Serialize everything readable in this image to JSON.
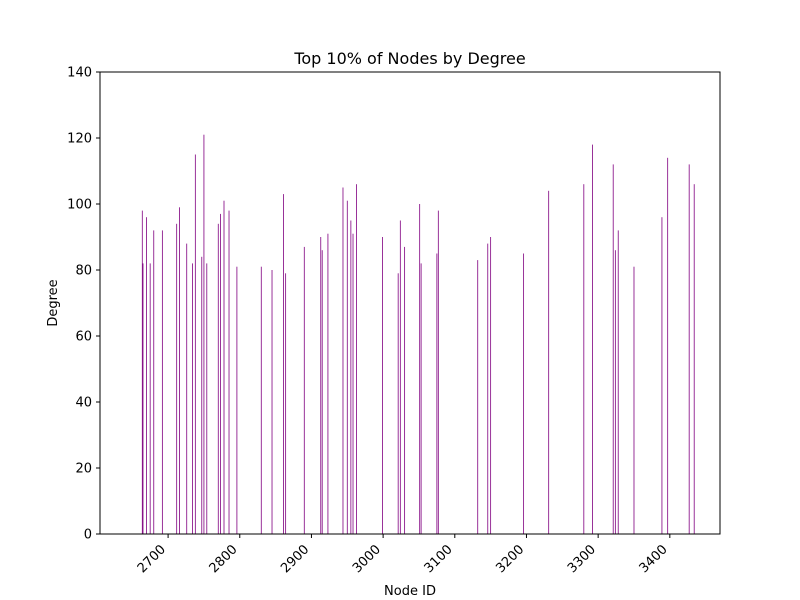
{
  "chart_data": {
    "type": "bar",
    "title": "Top 10% of Nodes by Degree",
    "xlabel": "Node ID",
    "ylabel": "Degree",
    "xlim": [
      2605,
      3470
    ],
    "ylim": [
      0,
      140
    ],
    "xticks": [
      2700,
      2800,
      2900,
      3000,
      3100,
      3200,
      3300,
      3400
    ],
    "yticks": [
      0,
      20,
      40,
      60,
      80,
      100,
      120,
      140
    ],
    "grid": false,
    "bar_color": "#800080",
    "x": [
      2664,
      2665,
      2670,
      2675,
      2680,
      2692,
      2712,
      2716,
      2726,
      2734,
      2738,
      2747,
      2750,
      2754,
      2770,
      2773,
      2778,
      2785,
      2796,
      2830,
      2845,
      2861,
      2864,
      2890,
      2913,
      2915,
      2923,
      2944,
      2950,
      2955,
      2958,
      2963,
      2999,
      3021,
      3024,
      3030,
      3051,
      3053,
      3075,
      3077,
      3132,
      3146,
      3150,
      3196,
      3231,
      3280,
      3292,
      3321,
      3324,
      3328,
      3350,
      3389,
      3397,
      3427,
      3434
    ],
    "values": [
      98,
      82,
      96,
      82,
      92,
      92,
      94,
      99,
      88,
      82,
      115,
      84,
      121,
      82,
      94,
      97,
      101,
      98,
      81,
      81,
      80,
      103,
      79,
      87,
      90,
      86,
      91,
      105,
      101,
      95,
      91,
      106,
      90,
      79,
      95,
      87,
      100,
      82,
      85,
      98,
      83,
      88,
      90,
      85,
      104,
      106,
      118,
      112,
      86,
      92,
      81,
      96,
      114,
      112,
      106
    ]
  }
}
